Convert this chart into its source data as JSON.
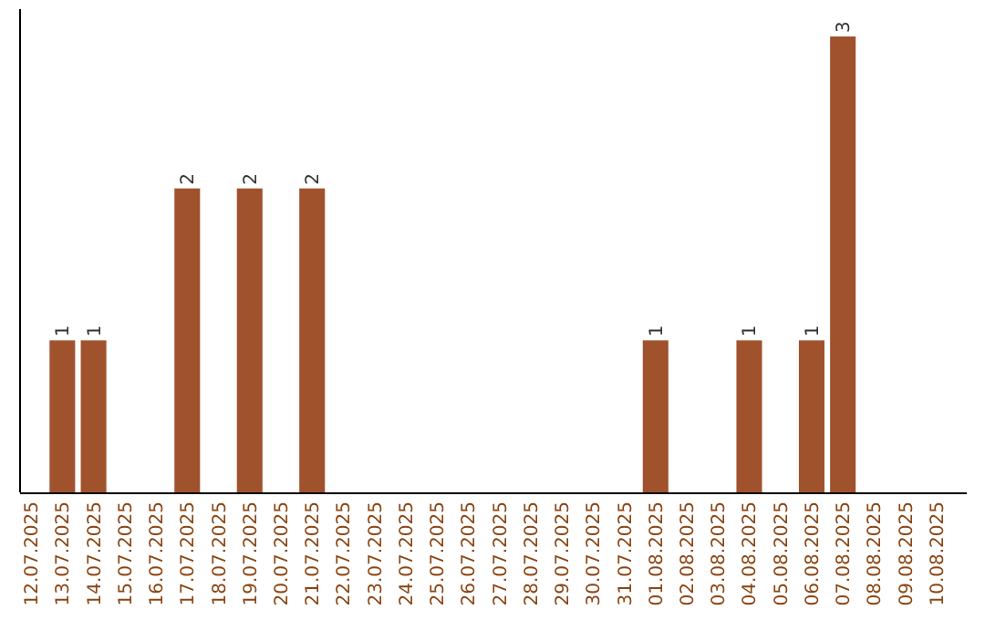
{
  "chart_data": {
    "type": "bar",
    "categories": [
      "12.07.2025",
      "13.07.2025",
      "14.07.2025",
      "15.07.2025",
      "16.07.2025",
      "17.07.2025",
      "18.07.2025",
      "19.07.2025",
      "20.07.2025",
      "21.07.2025",
      "22.07.2025",
      "23.07.2025",
      "24.07.2025",
      "25.07.2025",
      "26.07.2025",
      "27.07.2025",
      "28.07.2025",
      "29.07.2025",
      "30.07.2025",
      "31.07.2025",
      "01.08.2025",
      "02.08.2025",
      "03.08.2025",
      "04.08.2025",
      "05.08.2025",
      "06.08.2025",
      "07.08.2025",
      "08.08.2025",
      "09.08.2025",
      "10.08.2025"
    ],
    "values": [
      0,
      1,
      1,
      0,
      0,
      2,
      0,
      2,
      0,
      2,
      0,
      0,
      0,
      0,
      0,
      0,
      0,
      0,
      0,
      0,
      1,
      0,
      0,
      1,
      0,
      1,
      3,
      0,
      0,
      0
    ],
    "value_labels": [
      null,
      "1",
      "1",
      null,
      null,
      "2",
      null,
      "2",
      null,
      "2",
      null,
      null,
      null,
      null,
      null,
      null,
      null,
      null,
      null,
      null,
      "1",
      null,
      null,
      "1",
      null,
      "1",
      "3",
      null,
      null,
      null
    ],
    "color": "#a0522d"
  }
}
